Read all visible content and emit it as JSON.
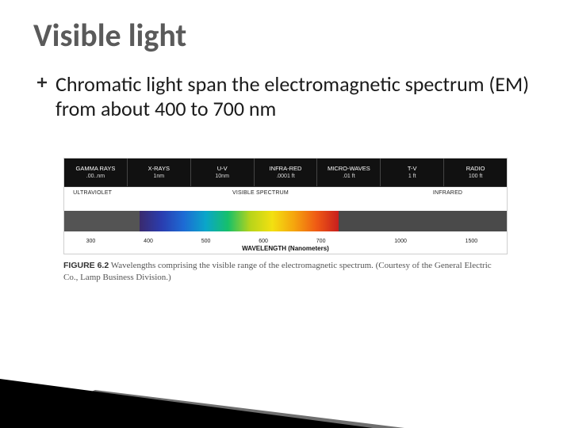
{
  "title": "Visible light",
  "bullet": {
    "lead": "Chromatic light ",
    "rest": "span the electromagnetic spectrum (EM) from about 400 to 700 nm"
  },
  "chart": {
    "top_band": [
      {
        "top": "GAMMA RAYS",
        "bot": ".00..nm"
      },
      {
        "top": "X-RAYS",
        "bot": "1nm"
      },
      {
        "top": "U-V",
        "bot": "10nm"
      },
      {
        "top": "INFRA-RED",
        "bot": ".0001 ft"
      },
      {
        "top": "MICRO-WAVES",
        "bot": ".01 ft"
      },
      {
        "top": "T-V",
        "bot": "1 ft"
      },
      {
        "top": "RADIO",
        "bot": "100 ft"
      }
    ],
    "labels": {
      "uv": "ULTRAVIOLET",
      "vis": "VISIBLE SPECTRUM",
      "ir": "INFRARED"
    },
    "segments": {
      "uv": {
        "pct": 17,
        "color": "#545454"
      },
      "vis": {
        "pct": 45,
        "gradient": [
          "#3a2a6d",
          "#2a3db0",
          "#1d6bd4",
          "#0aa6c9",
          "#16c06a",
          "#b7d41a",
          "#f3e011",
          "#f5a40e",
          "#ef5a14",
          "#c81e1e"
        ]
      },
      "ir": {
        "pct": 38,
        "color": "#4a4a4a"
      }
    },
    "ticks": [
      {
        "pos_pct": 6,
        "label": "300"
      },
      {
        "pos_pct": 19,
        "label": "400"
      },
      {
        "pos_pct": 32,
        "label": "500"
      },
      {
        "pos_pct": 45,
        "label": "600"
      },
      {
        "pos_pct": 58,
        "label": "700"
      },
      {
        "pos_pct": 76,
        "label": "1000"
      },
      {
        "pos_pct": 92,
        "label": "1500"
      }
    ],
    "axis_label": "WAVELENGTH (Nanometers)"
  },
  "caption": {
    "figno": "FIGURE 6.2",
    "text": "Wavelengths comprising the visible range of the electromagnetic spectrum. (Courtesy of the General Electric Co., Lamp Business Division.)"
  },
  "decor": {
    "black": "#000000",
    "gray": "#6f6f6f"
  }
}
